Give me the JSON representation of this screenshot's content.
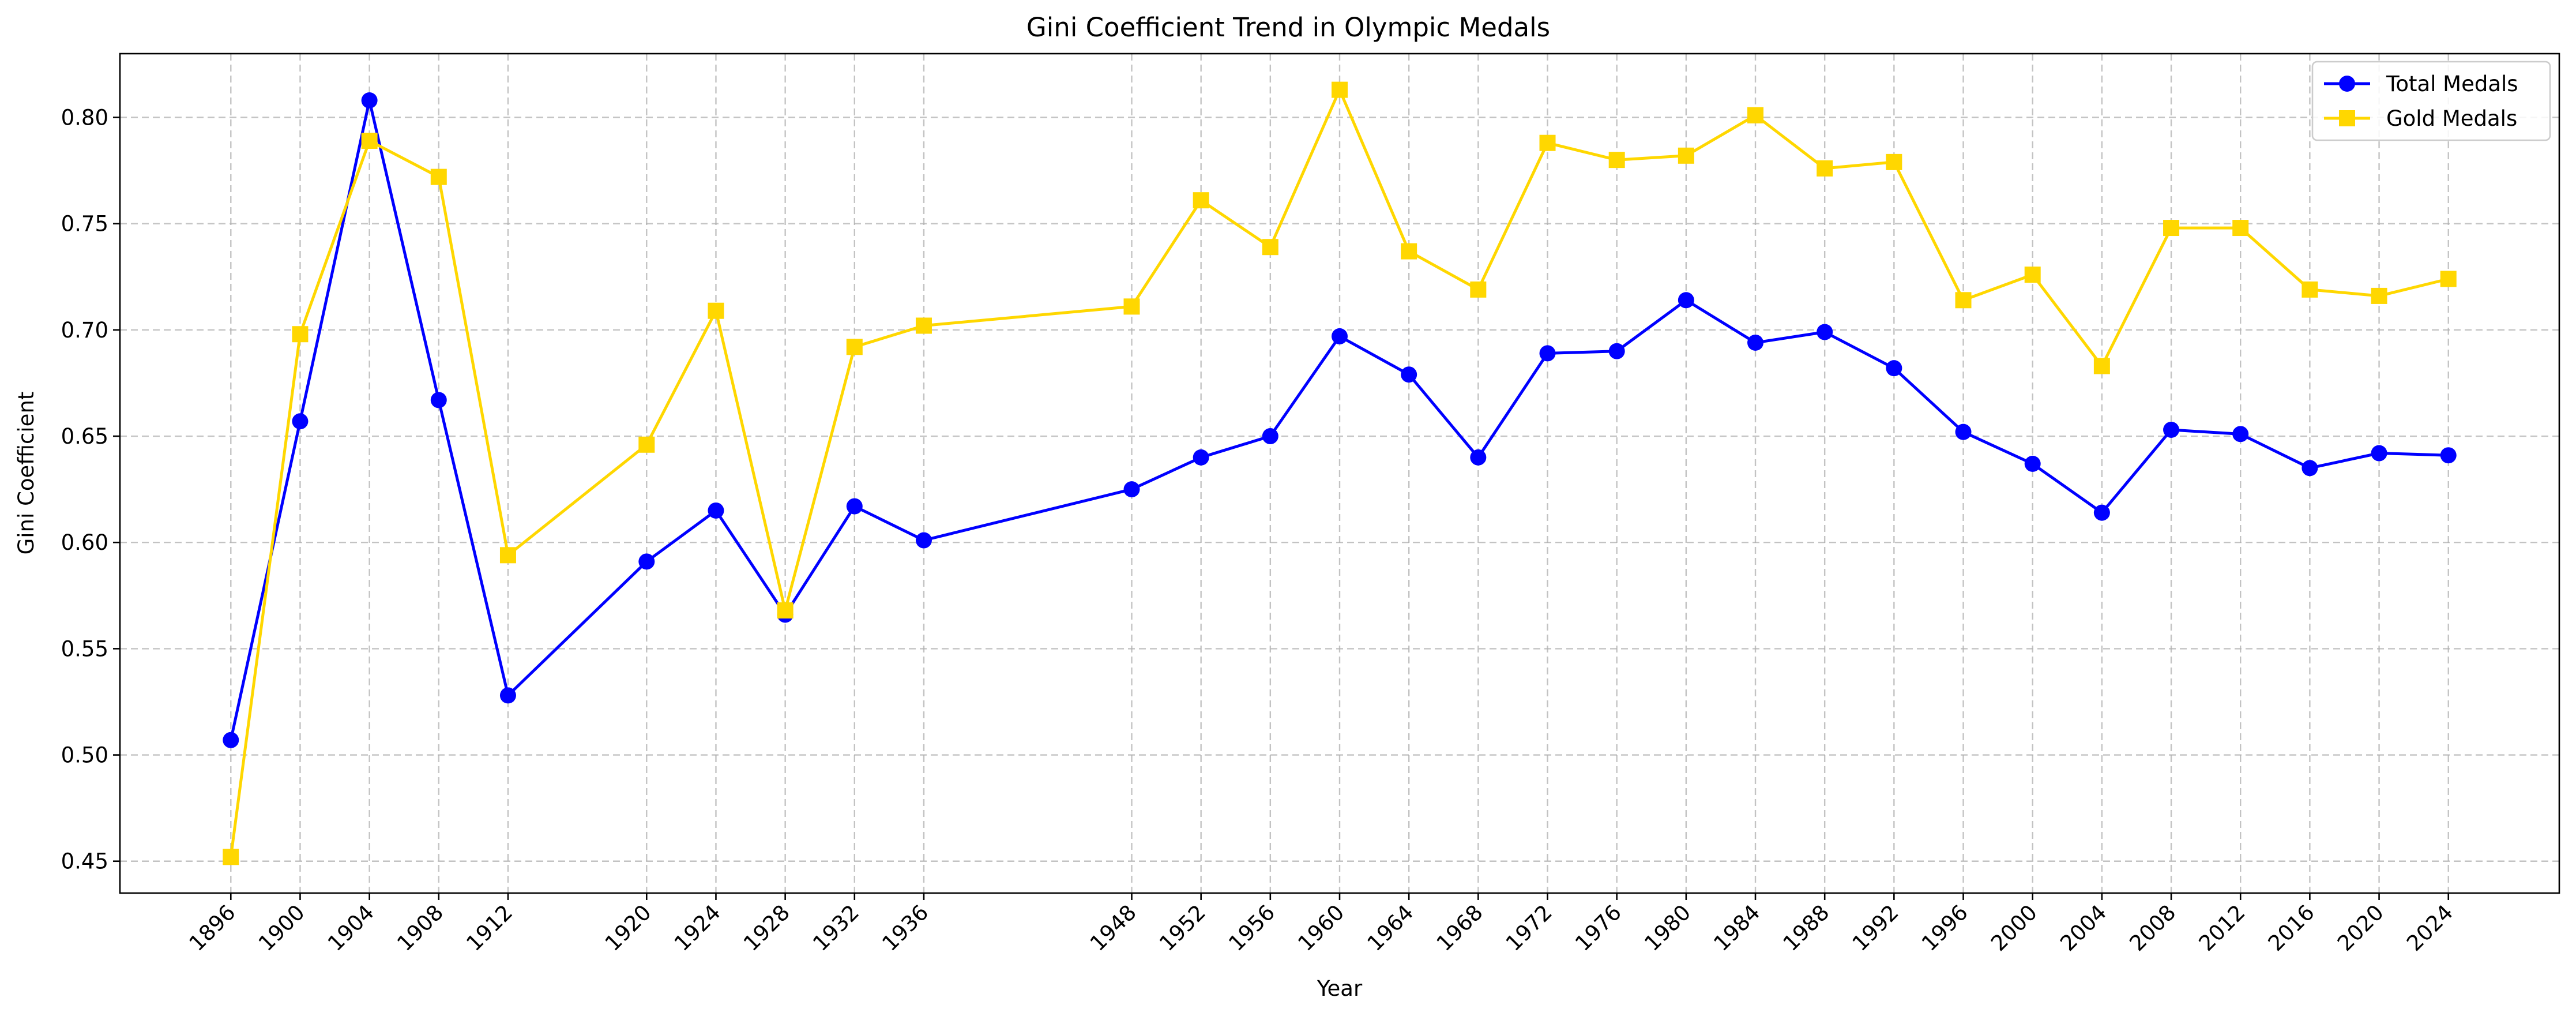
{
  "chart_data": {
    "type": "line",
    "title": "Gini Coefficient Trend in Olympic Medals",
    "xlabel": "Year",
    "ylabel": "Gini Coefficient",
    "x": [
      1896,
      1900,
      1904,
      1908,
      1912,
      1920,
      1924,
      1928,
      1932,
      1936,
      1948,
      1952,
      1956,
      1960,
      1964,
      1968,
      1972,
      1976,
      1980,
      1984,
      1988,
      1992,
      1996,
      2000,
      2004,
      2008,
      2012,
      2016,
      2020,
      2024
    ],
    "xlim": [
      1889.6,
      2030.4
    ],
    "ylim": [
      0.435,
      0.83
    ],
    "yticks": [
      0.45,
      0.5,
      0.55,
      0.6,
      0.65,
      0.7,
      0.75,
      0.8
    ],
    "ytick_labels": [
      "0.45",
      "0.50",
      "0.55",
      "0.60",
      "0.65",
      "0.70",
      "0.75",
      "0.80"
    ],
    "grid": true,
    "legend_position": "top-right",
    "series": [
      {
        "name": "Total Medals",
        "color": "#0000ff",
        "marker": "circle",
        "values": [
          0.507,
          0.657,
          0.808,
          0.667,
          0.528,
          0.591,
          0.615,
          0.566,
          0.617,
          0.601,
          0.625,
          0.64,
          0.65,
          0.697,
          0.679,
          0.64,
          0.689,
          0.69,
          0.714,
          0.694,
          0.699,
          0.682,
          0.652,
          0.637,
          0.614,
          0.653,
          0.651,
          0.635,
          0.642,
          0.641
        ]
      },
      {
        "name": "Gold Medals",
        "color": "#ffd700",
        "marker": "square",
        "values": [
          0.452,
          0.698,
          0.789,
          0.772,
          0.594,
          0.646,
          0.709,
          0.568,
          0.692,
          0.702,
          0.711,
          0.761,
          0.739,
          0.813,
          0.737,
          0.719,
          0.788,
          0.78,
          0.782,
          0.801,
          0.776,
          0.779,
          0.714,
          0.726,
          0.683,
          0.748,
          0.748,
          0.719,
          0.716,
          0.724
        ]
      }
    ]
  }
}
